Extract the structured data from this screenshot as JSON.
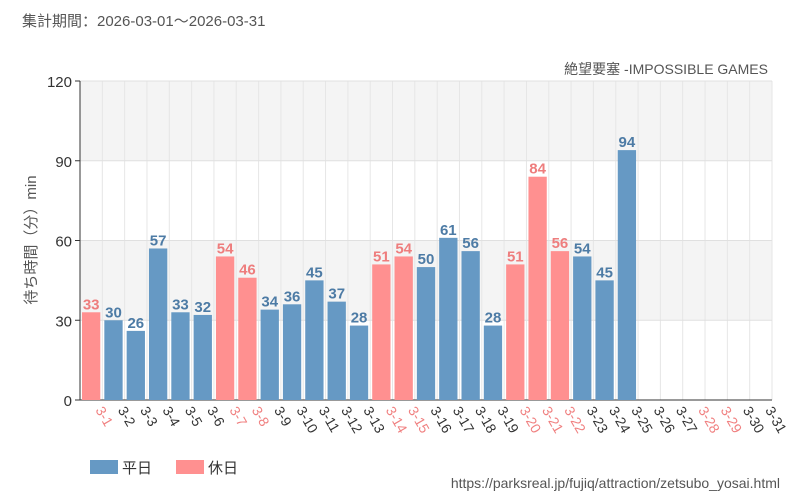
{
  "header": {
    "period": "集計期間：2026-03-01～2026-03-31"
  },
  "source_url": "https://parksreal.jp/fujiq/attraction/zetsubo_yosai.html",
  "chart_data": {
    "type": "bar",
    "title": "絶望要塞 -IMPOSSIBLE GAMES",
    "ylabel": "待ち時間（分）min",
    "xlabel": "",
    "ylim": [
      0,
      120
    ],
    "yticks": [
      0,
      30,
      60,
      90,
      120
    ],
    "grid": true,
    "categories": [
      "3-1",
      "3-2",
      "3-3",
      "3-4",
      "3-5",
      "3-6",
      "3-7",
      "3-8",
      "3-9",
      "3-10",
      "3-11",
      "3-12",
      "3-13",
      "3-14",
      "3-15",
      "3-16",
      "3-17",
      "3-18",
      "3-19",
      "3-20",
      "3-21",
      "3-22",
      "3-23",
      "3-24",
      "3-25",
      "3-26",
      "3-27",
      "3-28",
      "3-29",
      "3-30",
      "3-31"
    ],
    "values": [
      33,
      30,
      26,
      57,
      33,
      32,
      54,
      46,
      34,
      36,
      45,
      37,
      28,
      51,
      54,
      50,
      61,
      56,
      28,
      51,
      84,
      56,
      54,
      45,
      94,
      null,
      null,
      null,
      null,
      null,
      null
    ],
    "day_type": [
      "holiday",
      "weekday",
      "weekday",
      "weekday",
      "weekday",
      "weekday",
      "holiday",
      "holiday",
      "weekday",
      "weekday",
      "weekday",
      "weekday",
      "weekday",
      "holiday",
      "holiday",
      "weekday",
      "weekday",
      "weekday",
      "weekday",
      "holiday",
      "holiday",
      "holiday",
      "weekday",
      "weekday",
      "weekday",
      "weekday",
      "weekday",
      "holiday",
      "holiday",
      "weekday",
      "weekday"
    ],
    "colors": {
      "weekday": "#6699c4",
      "holiday": "#ff9090",
      "weekday_label": "#4d7ba5",
      "holiday_label": "#ee7d7d",
      "tick_weekday": "#333333",
      "tick_holiday": "#f08080"
    },
    "legend": {
      "placement": "bottom-left",
      "items": [
        {
          "key": "weekday",
          "label": "平日"
        },
        {
          "key": "holiday",
          "label": "休日"
        }
      ]
    }
  }
}
